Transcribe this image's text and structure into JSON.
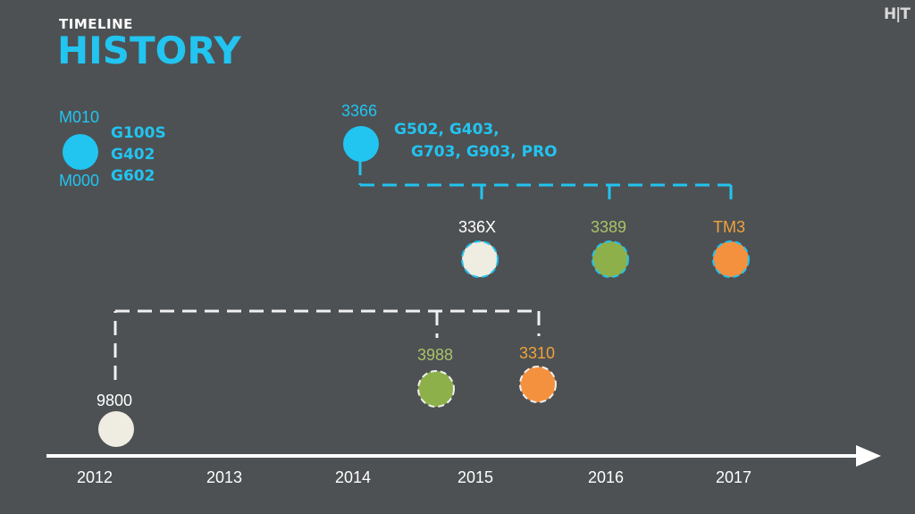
{
  "header": {
    "kicker": "TIMELINE",
    "title": "HISTORY",
    "logo": "H|T"
  },
  "timeline": {
    "years": [
      "2012",
      "2013",
      "2014",
      "2015",
      "2016",
      "2017"
    ]
  },
  "nodes": {
    "m010": "M010",
    "m000": "M000",
    "early_models": [
      "G100S",
      "G402",
      "G602"
    ],
    "s3366": "3366",
    "models_3366": [
      "G502, G403,",
      "G703, G903, PRO"
    ],
    "s336x": "336X",
    "s3389": "3389",
    "tm3": "TM3",
    "s9800": "9800",
    "s3988": "3988",
    "s3310": "3310"
  },
  "colors": {
    "blue": "#22c4f0",
    "white": "#efece2",
    "green": "#8db04a",
    "orange": "#f4913f",
    "background": "#4d5154"
  }
}
